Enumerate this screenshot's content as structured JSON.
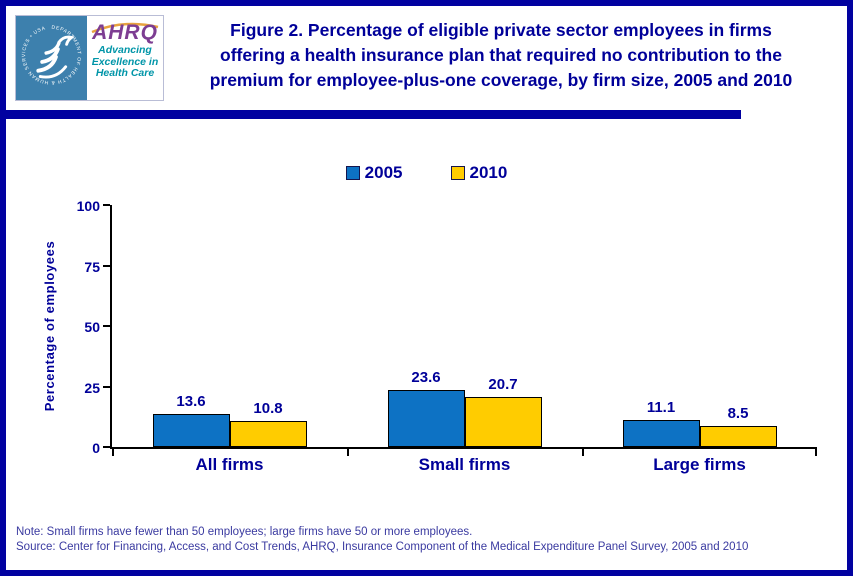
{
  "header": {
    "logo": {
      "seal_text": "DEPARTMENT OF HEALTH & HUMAN SERVICES • USA",
      "ahrq_acronym": "AHRQ",
      "tagline_lines": [
        "Advancing",
        "Excellence in",
        "Health Care"
      ]
    },
    "title_lines": [
      "Figure 2. Percentage of eligible private sector employees in firms",
      "offering a health insurance plan that required no contribution to the",
      "premium for employee-plus-one coverage, by firm size, 2005 and 2010"
    ]
  },
  "chart_data": {
    "type": "bar",
    "title": "Figure 2. Percentage of eligible private sector employees in firms offering a health insurance plan that required no contribution to the premium for employee-plus-one coverage, by firm size, 2005 and 2010",
    "categories": [
      "All firms",
      "Small firms",
      "Large firms"
    ],
    "series": [
      {
        "name": "2005",
        "color": "#0D72C4",
        "values": [
          13.6,
          23.6,
          11.1
        ]
      },
      {
        "name": "2010",
        "color": "#FFCC00",
        "values": [
          10.8,
          20.7,
          8.5
        ]
      }
    ],
    "xlabel": "",
    "ylabel": "Percentage of employees",
    "ylim": [
      0,
      100
    ],
    "yticks": [
      0,
      25,
      50,
      75,
      100
    ],
    "grid": false,
    "legend_position": "top-center",
    "value_labels": true
  },
  "footer": {
    "note": "Note: Small firms have fewer than 50 employees; large firms have 50 or more employees.",
    "source": "Source: Center for Financing, Access, and Cost Trends, AHRQ, Insurance Component  of the Medical Expenditure Panel Survey,  2005 and 2010"
  },
  "colors": {
    "frame_navy": "#0101A0",
    "text_navy": "#000099",
    "bar_2005_blue": "#0D72C4",
    "bar_2010_yellow": "#FFCC00",
    "axis_black": "#000000",
    "hhs_seal_blue": "#3D80AD",
    "ahrq_purple": "#7D3D92",
    "ahrq_teal": "#0095A8",
    "arc_orange": "#E8A33F"
  }
}
